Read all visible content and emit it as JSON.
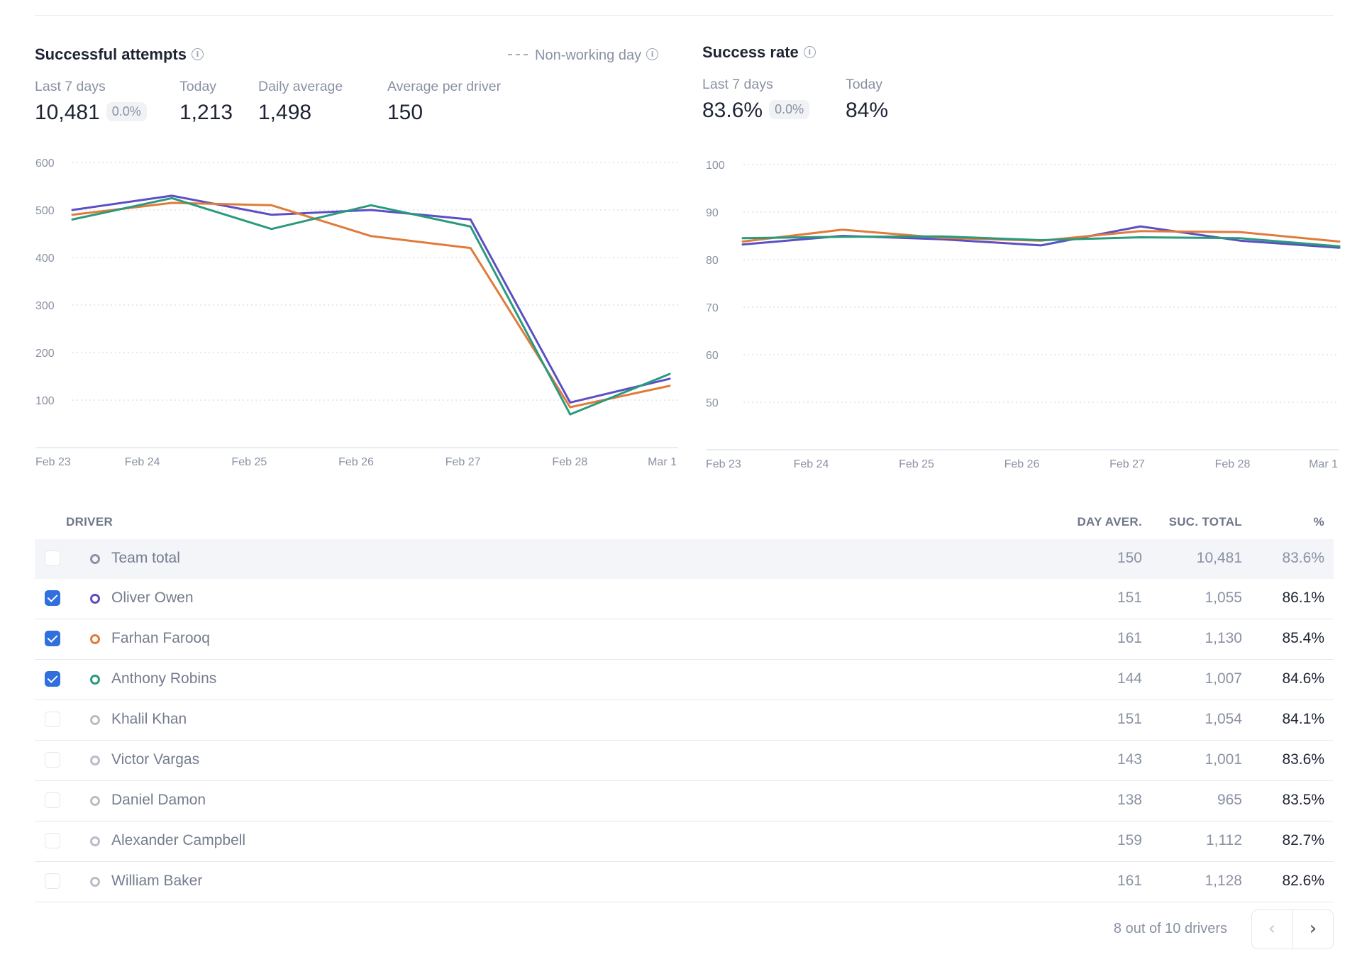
{
  "attempts": {
    "title": "Successful attempts",
    "legend_note": "Non-working day",
    "stats": {
      "last7_label": "Last 7 days",
      "last7_value": "10,481",
      "last7_badge": "0.0%",
      "today_label": "Today",
      "today_value": "1,213",
      "daily_label": "Daily average",
      "daily_value": "1,498",
      "perdriver_label": "Average per driver",
      "perdriver_value": "150"
    }
  },
  "rate": {
    "title": "Success rate",
    "stats": {
      "last7_label": "Last 7 days",
      "last7_value": "83.6%",
      "last7_badge": "0.0%",
      "today_label": "Today",
      "today_value": "84%"
    }
  },
  "chart_data": [
    {
      "type": "line",
      "title": "Successful attempts",
      "x": [
        "Feb 23",
        "Feb 24",
        "Feb 25",
        "Feb 26",
        "Feb 27",
        "Feb 28",
        "Mar 1"
      ],
      "ylim": [
        0,
        600
      ],
      "yticks": [
        100,
        200,
        300,
        400,
        500,
        600
      ],
      "grid": true,
      "series": [
        {
          "name": "Oliver Owen",
          "color": "#5b4fc4",
          "values": [
            500,
            530,
            490,
            500,
            480,
            95,
            145
          ]
        },
        {
          "name": "Farhan Farooq",
          "color": "#e07b39",
          "values": [
            490,
            515,
            510,
            445,
            420,
            85,
            130
          ]
        },
        {
          "name": "Anthony Robins",
          "color": "#2a9a7d",
          "values": [
            480,
            525,
            460,
            510,
            465,
            70,
            155
          ]
        }
      ]
    },
    {
      "type": "line",
      "title": "Success rate",
      "x": [
        "Feb 23",
        "Feb 24",
        "Feb 25",
        "Feb 26",
        "Feb 27",
        "Feb 28",
        "Mar 1"
      ],
      "ylim": [
        40,
        100
      ],
      "yticks": [
        50,
        60,
        70,
        80,
        90,
        100
      ],
      "grid": true,
      "series": [
        {
          "name": "Oliver Owen",
          "color": "#5b4fc4",
          "values": [
            83.2,
            85,
            84.3,
            83,
            87,
            84,
            82.5
          ]
        },
        {
          "name": "Farhan Farooq",
          "color": "#e07b39",
          "values": [
            83.8,
            86.3,
            84.6,
            84,
            86,
            85.8,
            83.8
          ]
        },
        {
          "name": "Anthony Robins",
          "color": "#2a9a7d",
          "values": [
            84.5,
            84.8,
            84.9,
            84.1,
            84.7,
            84.5,
            82.8
          ]
        }
      ]
    }
  ],
  "table": {
    "headers": {
      "driver": "DRIVER",
      "day_aver": "DAY AVER.",
      "suc_total": "SUC. TOTAL",
      "pct": "%"
    },
    "rows": [
      {
        "name": "Team total",
        "day": "150",
        "total": "10,481",
        "pct": "83.6%",
        "checked": false,
        "color": "#8a91a3",
        "team": true
      },
      {
        "name": "Oliver Owen",
        "day": "151",
        "total": "1,055",
        "pct": "86.1%",
        "checked": true,
        "color": "#5b4fc4"
      },
      {
        "name": "Farhan Farooq",
        "day": "161",
        "total": "1,130",
        "pct": "85.4%",
        "checked": true,
        "color": "#e07b39"
      },
      {
        "name": "Anthony Robins",
        "day": "144",
        "total": "1,007",
        "pct": "84.6%",
        "checked": true,
        "color": "#2a9a7d"
      },
      {
        "name": "Khalil Khan",
        "day": "151",
        "total": "1,054",
        "pct": "84.1%",
        "checked": false,
        "color": "#b8bdc8"
      },
      {
        "name": "Victor Vargas",
        "day": "143",
        "total": "1,001",
        "pct": "83.6%",
        "checked": false,
        "color": "#b8bdc8"
      },
      {
        "name": "Daniel Damon",
        "day": "138",
        "total": "965",
        "pct": "83.5%",
        "checked": false,
        "color": "#b8bdc8"
      },
      {
        "name": "Alexander Campbell",
        "day": "159",
        "total": "1,112",
        "pct": "82.7%",
        "checked": false,
        "color": "#b8bdc8"
      },
      {
        "name": "William Baker",
        "day": "161",
        "total": "1,128",
        "pct": "82.6%",
        "checked": false,
        "color": "#b8bdc8"
      }
    ]
  },
  "pagination": {
    "text": "8 out of 10 drivers",
    "prev_icon": "‹",
    "next_icon": "›"
  }
}
